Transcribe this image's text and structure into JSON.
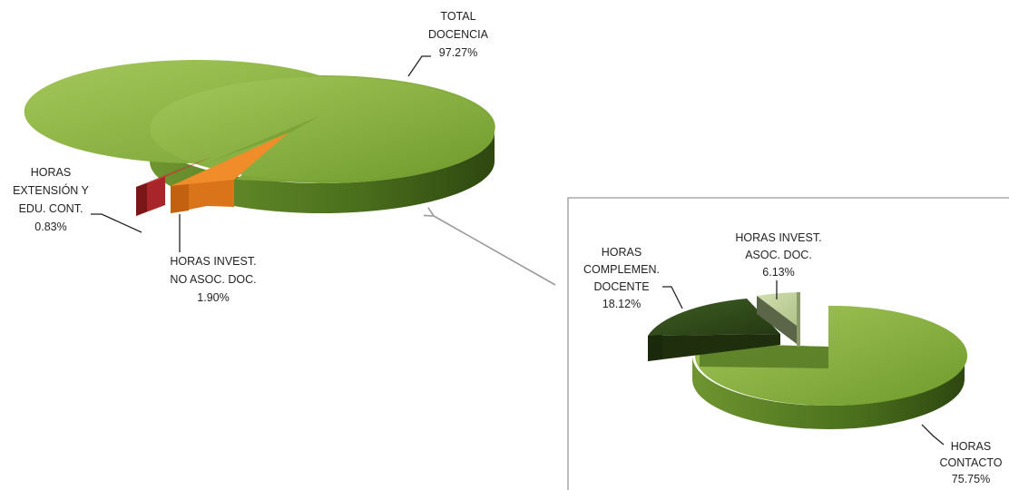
{
  "chart_data": [
    {
      "type": "pie",
      "title": "",
      "categories": [
        "TOTAL DOCENCIA",
        "HORAS INVEST. NO ASOC. DOC.",
        "HORAS EXTENSIÓN Y EDU. CONT."
      ],
      "values": [
        97.27,
        1.9,
        0.83
      ],
      "colors": [
        "#8ab040",
        "#e07d1c",
        "#a8262a"
      ],
      "labels": [
        {
          "lines": [
            "TOTAL",
            "DOCENCIA"
          ],
          "value": "97.27%"
        },
        {
          "lines": [
            "HORAS INVEST.",
            "NO ASOC. DOC."
          ],
          "value": "1.90%"
        },
        {
          "lines": [
            "HORAS",
            "EXTENSIÓN Y",
            "EDU. CONT."
          ],
          "value": "0.83%"
        }
      ],
      "style": "3d-exploded"
    },
    {
      "type": "pie",
      "title": "",
      "categories": [
        "HORAS CONTACTO",
        "HORAS COMPLEMEN. DOCENTE",
        "HORAS INVEST. ASOC. DOC."
      ],
      "values": [
        75.75,
        18.12,
        6.13
      ],
      "colors": [
        "#8ab040",
        "#2f4a1a",
        "#c2d49a"
      ],
      "labels": [
        {
          "lines": [
            "HORAS",
            "CONTACTO"
          ],
          "value": "75.75%"
        },
        {
          "lines": [
            "HORAS",
            "COMPLEMEN.",
            "DOCENTE"
          ],
          "value": "18.12%"
        },
        {
          "lines": [
            "HORAS INVEST.",
            "ASOC. DOC."
          ],
          "value": "6.13%"
        }
      ],
      "style": "3d-exploded",
      "detail_of": "TOTAL DOCENCIA"
    }
  ]
}
